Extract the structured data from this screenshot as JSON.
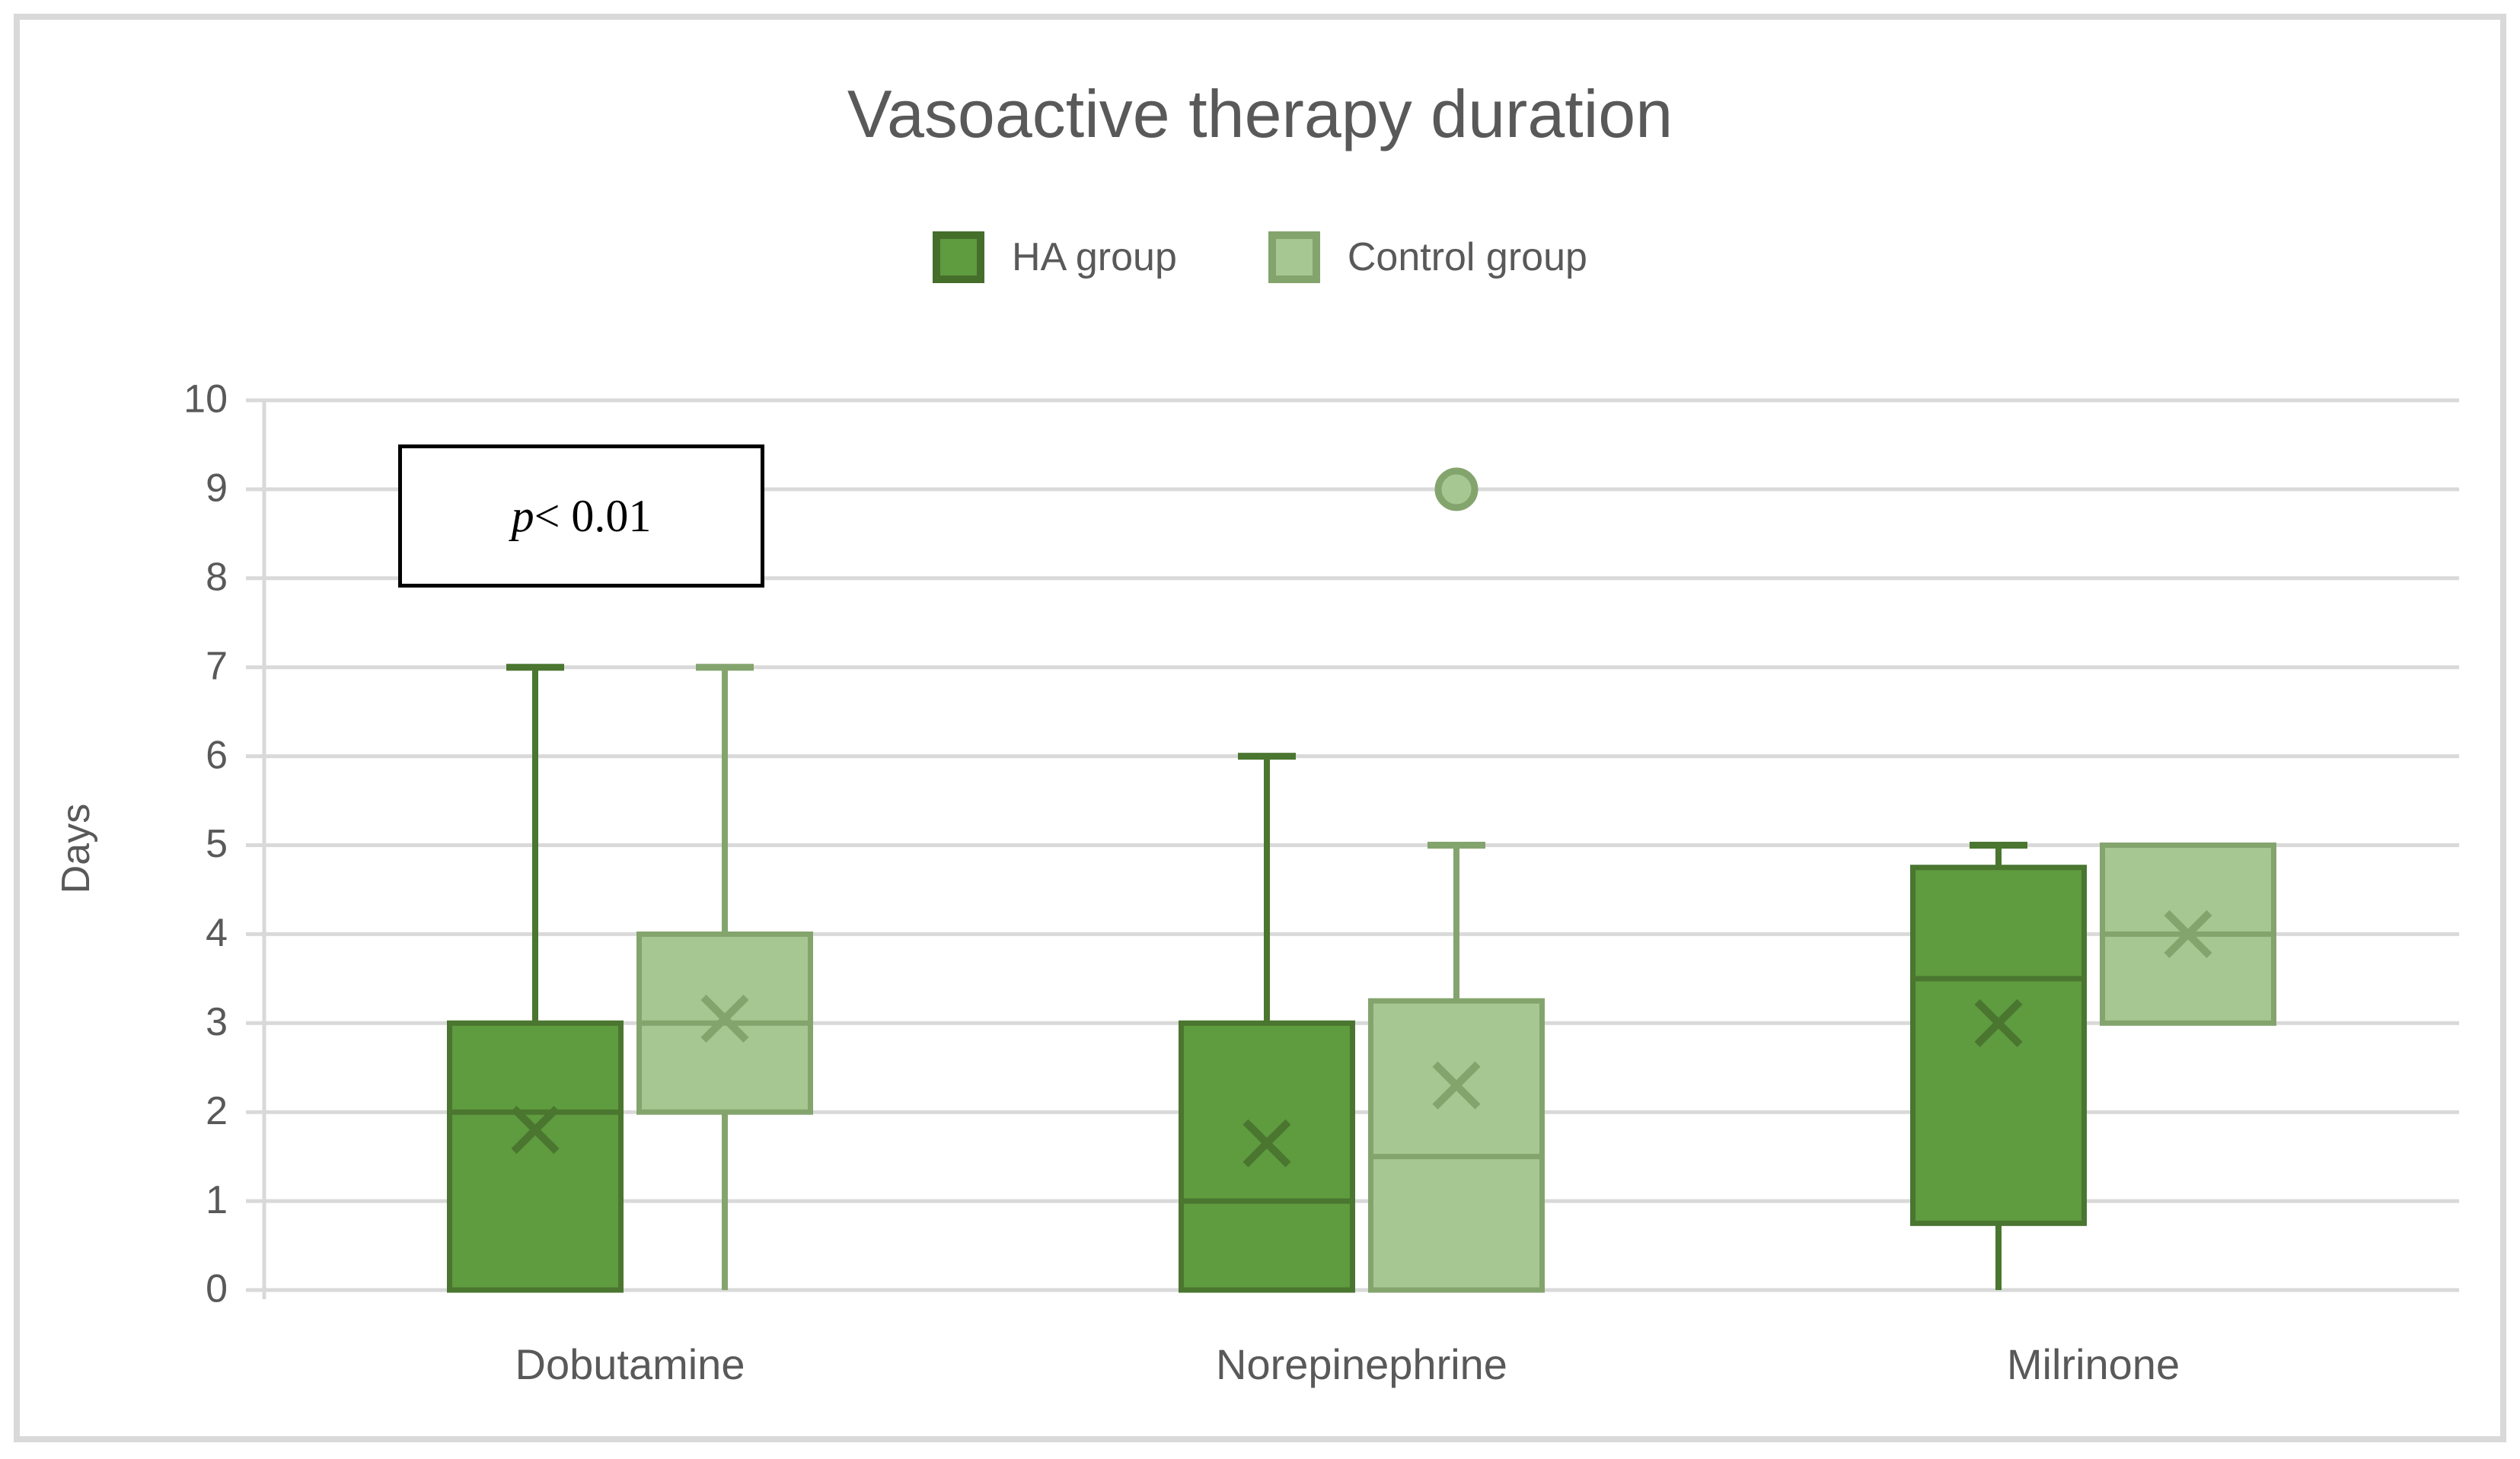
{
  "title": "Vasoactive therapy duration",
  "legend": {
    "ha_label": "HA group",
    "control_label": "Control group"
  },
  "annotation": {
    "italic": "p",
    "text": " < 0.01"
  },
  "y_axis": {
    "title": "Days"
  },
  "colors": {
    "ha_fill": "#5F9B3F",
    "ha_border": "#4A7630",
    "control_fill": "#A6C791",
    "control_border": "#84A46D",
    "gridline": "#D9D9D9",
    "text": "#595959",
    "figure_border": "#D9D9D9",
    "annotation_border": "#000000"
  },
  "chart_data": {
    "type": "boxplot",
    "title": "Vasoactive therapy duration",
    "xlabel": "",
    "ylabel": "Days",
    "ylim": [
      0,
      10
    ],
    "y_ticks": [
      0,
      1,
      2,
      3,
      4,
      5,
      6,
      7,
      8,
      9,
      10
    ],
    "grid": true,
    "legend_position": "top",
    "categories": [
      "Dobutamine",
      "Norepinephrine",
      "Milrinone"
    ],
    "annotation": "p < 0.01",
    "series": [
      {
        "name": "HA group",
        "fill": "#5F9B3F",
        "border": "#4A7630",
        "boxes": [
          {
            "category": "Dobutamine",
            "min": 0,
            "q1": 0,
            "median": 2,
            "q3": 3,
            "max": 7,
            "mean": 1.8,
            "outliers": []
          },
          {
            "category": "Norepinephrine",
            "min": 0,
            "q1": 0,
            "median": 1,
            "q3": 3,
            "max": 6,
            "mean": 1.65,
            "outliers": []
          },
          {
            "category": "Milrinone",
            "min": 0,
            "q1": 0.75,
            "median": 3.5,
            "q3": 4.75,
            "max": 5,
            "mean": 3.0,
            "outliers": []
          }
        ]
      },
      {
        "name": "Control group",
        "fill": "#A6C791",
        "border": "#84A46D",
        "boxes": [
          {
            "category": "Dobutamine",
            "min": 0,
            "q1": 2,
            "median": 3,
            "q3": 4,
            "max": 7,
            "mean": 3.05,
            "outliers": []
          },
          {
            "category": "Norepinephrine",
            "min": 0,
            "q1": 0,
            "median": 1.5,
            "q3": 3.25,
            "max": 5,
            "mean": 2.3,
            "outliers": [
              9
            ]
          },
          {
            "category": "Milrinone",
            "min": 3,
            "q1": 3,
            "median": 4,
            "q3": 5,
            "max": 5,
            "mean": 4.0,
            "outliers": []
          }
        ]
      }
    ]
  }
}
